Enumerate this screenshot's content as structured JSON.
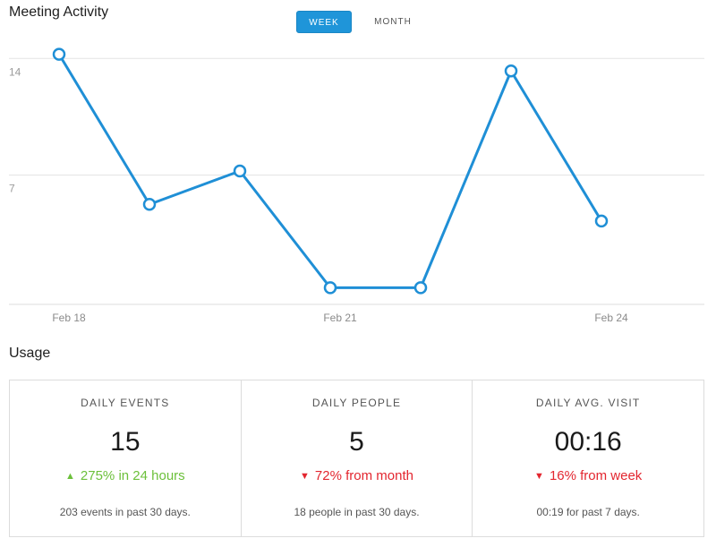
{
  "header": {
    "title": "Meeting Activity",
    "toggle_week": "WEEK",
    "toggle_month": "MONTH",
    "active_toggle": "WEEK"
  },
  "chart_data": {
    "type": "line",
    "x": [
      "Feb 18",
      "Feb 19",
      "Feb 20",
      "Feb 21",
      "Feb 22",
      "Feb 23",
      "Feb 24"
    ],
    "x_tick_labels": [
      "Feb 18",
      "Feb 21",
      "Feb 24"
    ],
    "y_tick_labels": [
      "14",
      "7"
    ],
    "series": [
      {
        "values": [
          15,
          6,
          8,
          1,
          1,
          14,
          5
        ]
      }
    ],
    "line_color": "#1f8fd6",
    "grid": true,
    "ylim": [
      0,
      16
    ]
  },
  "usage": {
    "title": "Usage",
    "cards": [
      {
        "label": "DAILY EVENTS",
        "value": "15",
        "change": "275% in 24 hours",
        "direction": "up",
        "arrow": "^",
        "note": "203 events in past 30 days."
      },
      {
        "label": "DAILY PEOPLE",
        "value": "5",
        "change": "72% from month",
        "direction": "down",
        "arrow": "v",
        "note": "18 people in past 30 days."
      },
      {
        "label": "DAILY AVG. VISIT",
        "value": "00:16",
        "change": "16% from week",
        "direction": "down",
        "arrow": "v",
        "note": "00:19 for past 7 days."
      }
    ]
  },
  "colors": {
    "accent": "#1f95d9",
    "positive": "#6cc03b",
    "negative": "#e3262f"
  }
}
